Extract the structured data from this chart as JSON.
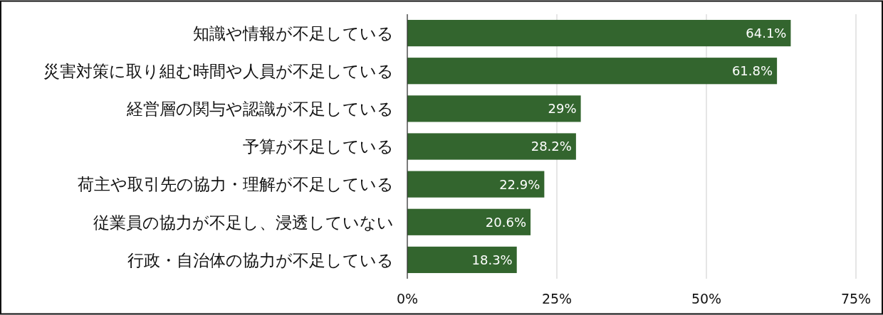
{
  "chart_data": {
    "type": "bar",
    "orientation": "horizontal",
    "categories": [
      "知識や情報が不足している",
      "災害対策に取り組む時間や人員が不足している",
      "経営層の関与や認識が不足している",
      "予算が不足している",
      "荷主や取引先の協力・理解が不足している",
      "従業員の協力が不足し、浸透していない",
      "行政・自治体の協力が不足している"
    ],
    "values": [
      64.1,
      61.8,
      29,
      28.2,
      22.9,
      20.6,
      18.3
    ],
    "value_labels": [
      "64.1%",
      "61.8%",
      "29%",
      "28.2%",
      "22.9%",
      "20.6%",
      "18.3%"
    ],
    "color": "#33652e",
    "xlim": [
      0,
      75
    ],
    "xticks": [
      {
        "value": 0,
        "label": "0%"
      },
      {
        "value": 25,
        "label": "25%"
      },
      {
        "value": 50,
        "label": "50%"
      },
      {
        "value": 75,
        "label": "75%"
      }
    ],
    "grid": "x"
  }
}
